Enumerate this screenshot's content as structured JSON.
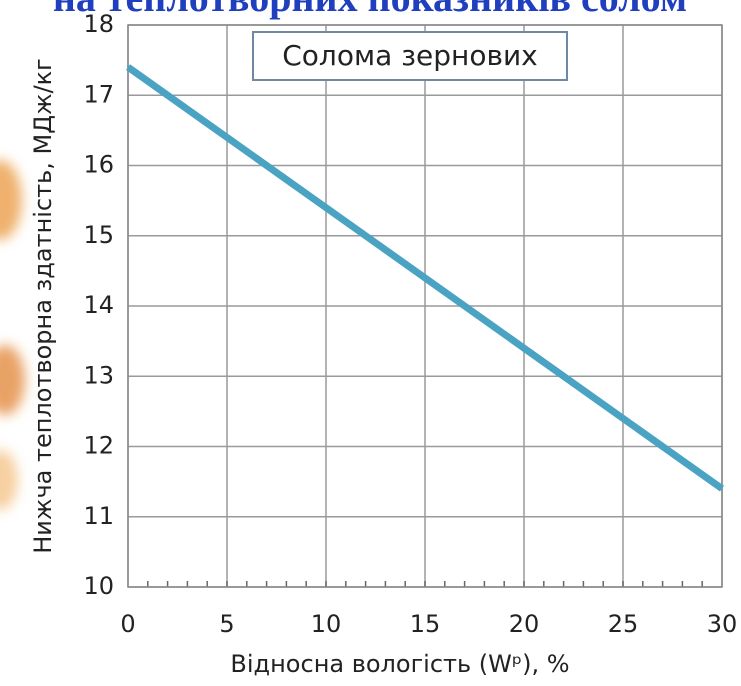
{
  "chart_data": {
    "type": "line",
    "title": "на теплотворних показників солом",
    "annotation": "Солома зернових",
    "x_label": "Відносна вологість (Wᵖ), %",
    "y_label": "Нижча теплотворна здатність, МДж/кг",
    "x": [
      0,
      30
    ],
    "series": [
      {
        "name": "Солома зернових",
        "color": "#4aa3c3",
        "values": [
          17.4,
          11.4
        ]
      }
    ],
    "xlim": [
      0,
      30
    ],
    "xticks": [
      0,
      5,
      10,
      15,
      20,
      25,
      30
    ],
    "ylim": [
      10,
      18
    ],
    "yticks": [
      10,
      11,
      12,
      13,
      14,
      15,
      16,
      17,
      18
    ],
    "grid": true
  }
}
